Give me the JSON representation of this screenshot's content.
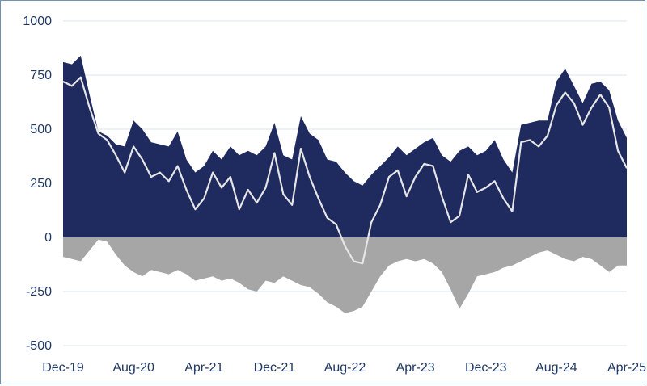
{
  "chart_data": {
    "type": "area",
    "title": "",
    "xlabel": "",
    "ylabel": "",
    "ylim": [
      -500,
      1000
    ],
    "yticks": [
      1000,
      750,
      500,
      250,
      0,
      -250,
      -500
    ],
    "xticks": [
      "Dec-19",
      "Aug-20",
      "Apr-21",
      "Dec-21",
      "Aug-22",
      "Apr-23",
      "Dec-23",
      "Aug-24",
      "Apr-25"
    ],
    "grid": true,
    "legend": "none",
    "x_range": [
      "2019-12",
      "2025-04"
    ],
    "series": [
      {
        "style": "area",
        "color": "#1f2b5e",
        "points": [
          [
            "2019-12",
            810
          ],
          [
            "2020-01",
            800
          ],
          [
            "2020-02",
            840
          ],
          [
            "2020-03",
            660
          ],
          [
            "2020-04",
            490
          ],
          [
            "2020-05",
            470
          ],
          [
            "2020-06",
            430
          ],
          [
            "2020-07",
            420
          ],
          [
            "2020-08",
            540
          ],
          [
            "2020-09",
            500
          ],
          [
            "2020-10",
            440
          ],
          [
            "2020-11",
            430
          ],
          [
            "2020-12",
            420
          ],
          [
            "2021-01",
            490
          ],
          [
            "2021-02",
            360
          ],
          [
            "2021-03",
            300
          ],
          [
            "2021-04",
            330
          ],
          [
            "2021-05",
            400
          ],
          [
            "2021-06",
            360
          ],
          [
            "2021-07",
            420
          ],
          [
            "2021-08",
            380
          ],
          [
            "2021-09",
            400
          ],
          [
            "2021-10",
            380
          ],
          [
            "2021-11",
            420
          ],
          [
            "2021-12",
            530
          ],
          [
            "2022-01",
            380
          ],
          [
            "2022-02",
            360
          ],
          [
            "2022-03",
            560
          ],
          [
            "2022-04",
            480
          ],
          [
            "2022-05",
            450
          ],
          [
            "2022-06",
            360
          ],
          [
            "2022-07",
            350
          ],
          [
            "2022-08",
            300
          ],
          [
            "2022-09",
            260
          ],
          [
            "2022-10",
            240
          ],
          [
            "2022-11",
            290
          ],
          [
            "2022-12",
            330
          ],
          [
            "2023-01",
            370
          ],
          [
            "2023-02",
            420
          ],
          [
            "2023-03",
            380
          ],
          [
            "2023-04",
            410
          ],
          [
            "2023-05",
            440
          ],
          [
            "2023-06",
            460
          ],
          [
            "2023-07",
            380
          ],
          [
            "2023-08",
            350
          ],
          [
            "2023-09",
            400
          ],
          [
            "2023-10",
            420
          ],
          [
            "2023-11",
            380
          ],
          [
            "2023-12",
            400
          ],
          [
            "2024-01",
            450
          ],
          [
            "2024-02",
            360
          ],
          [
            "2024-03",
            300
          ],
          [
            "2024-04",
            520
          ],
          [
            "2024-05",
            530
          ],
          [
            "2024-06",
            540
          ],
          [
            "2024-07",
            540
          ],
          [
            "2024-08",
            720
          ],
          [
            "2024-09",
            780
          ],
          [
            "2024-10",
            700
          ],
          [
            "2024-11",
            620
          ],
          [
            "2024-12",
            710
          ],
          [
            "2025-01",
            720
          ],
          [
            "2025-02",
            680
          ],
          [
            "2025-03",
            540
          ],
          [
            "2025-04",
            460
          ]
        ]
      },
      {
        "style": "area",
        "color": "#a6a6a6",
        "points": [
          [
            "2019-12",
            -90
          ],
          [
            "2020-01",
            -100
          ],
          [
            "2020-02",
            -110
          ],
          [
            "2020-03",
            -60
          ],
          [
            "2020-04",
            -10
          ],
          [
            "2020-05",
            -20
          ],
          [
            "2020-06",
            -80
          ],
          [
            "2020-07",
            -130
          ],
          [
            "2020-08",
            -160
          ],
          [
            "2020-09",
            -180
          ],
          [
            "2020-10",
            -150
          ],
          [
            "2020-11",
            -160
          ],
          [
            "2020-12",
            -170
          ],
          [
            "2021-01",
            -150
          ],
          [
            "2021-02",
            -170
          ],
          [
            "2021-03",
            -200
          ],
          [
            "2021-04",
            -190
          ],
          [
            "2021-05",
            -180
          ],
          [
            "2021-06",
            -200
          ],
          [
            "2021-07",
            -190
          ],
          [
            "2021-08",
            -210
          ],
          [
            "2021-09",
            -240
          ],
          [
            "2021-10",
            -250
          ],
          [
            "2021-11",
            -200
          ],
          [
            "2021-12",
            -210
          ],
          [
            "2022-01",
            -180
          ],
          [
            "2022-02",
            -200
          ],
          [
            "2022-03",
            -220
          ],
          [
            "2022-04",
            -230
          ],
          [
            "2022-05",
            -260
          ],
          [
            "2022-06",
            -300
          ],
          [
            "2022-07",
            -320
          ],
          [
            "2022-08",
            -350
          ],
          [
            "2022-09",
            -340
          ],
          [
            "2022-10",
            -320
          ],
          [
            "2022-11",
            -250
          ],
          [
            "2022-12",
            -180
          ],
          [
            "2023-01",
            -130
          ],
          [
            "2023-02",
            -110
          ],
          [
            "2023-03",
            -100
          ],
          [
            "2023-04",
            -110
          ],
          [
            "2023-05",
            -100
          ],
          [
            "2023-06",
            -120
          ],
          [
            "2023-07",
            -160
          ],
          [
            "2023-08",
            -240
          ],
          [
            "2023-09",
            -330
          ],
          [
            "2023-10",
            -260
          ],
          [
            "2023-11",
            -180
          ],
          [
            "2023-12",
            -170
          ],
          [
            "2024-01",
            -160
          ],
          [
            "2024-02",
            -140
          ],
          [
            "2024-03",
            -130
          ],
          [
            "2024-04",
            -110
          ],
          [
            "2024-05",
            -90
          ],
          [
            "2024-06",
            -70
          ],
          [
            "2024-07",
            -60
          ],
          [
            "2024-08",
            -80
          ],
          [
            "2024-09",
            -100
          ],
          [
            "2024-10",
            -110
          ],
          [
            "2024-11",
            -90
          ],
          [
            "2024-12",
            -100
          ],
          [
            "2025-01",
            -130
          ],
          [
            "2025-02",
            -160
          ],
          [
            "2025-03",
            -130
          ],
          [
            "2025-04",
            -130
          ]
        ]
      },
      {
        "style": "line",
        "color": "#e6e6e6",
        "points": [
          [
            "2019-12",
            720
          ],
          [
            "2020-01",
            700
          ],
          [
            "2020-02",
            740
          ],
          [
            "2020-03",
            600
          ],
          [
            "2020-04",
            480
          ],
          [
            "2020-05",
            450
          ],
          [
            "2020-06",
            380
          ],
          [
            "2020-07",
            300
          ],
          [
            "2020-08",
            420
          ],
          [
            "2020-09",
            360
          ],
          [
            "2020-10",
            280
          ],
          [
            "2020-11",
            300
          ],
          [
            "2020-12",
            260
          ],
          [
            "2021-01",
            330
          ],
          [
            "2021-02",
            220
          ],
          [
            "2021-03",
            130
          ],
          [
            "2021-04",
            180
          ],
          [
            "2021-05",
            300
          ],
          [
            "2021-06",
            230
          ],
          [
            "2021-07",
            280
          ],
          [
            "2021-08",
            130
          ],
          [
            "2021-09",
            220
          ],
          [
            "2021-10",
            160
          ],
          [
            "2021-11",
            230
          ],
          [
            "2021-12",
            390
          ],
          [
            "2022-01",
            200
          ],
          [
            "2022-02",
            150
          ],
          [
            "2022-03",
            410
          ],
          [
            "2022-04",
            280
          ],
          [
            "2022-05",
            180
          ],
          [
            "2022-06",
            90
          ],
          [
            "2022-07",
            60
          ],
          [
            "2022-08",
            -40
          ],
          [
            "2022-09",
            -110
          ],
          [
            "2022-10",
            -120
          ],
          [
            "2022-11",
            70
          ],
          [
            "2022-12",
            150
          ],
          [
            "2023-01",
            280
          ],
          [
            "2023-02",
            310
          ],
          [
            "2023-03",
            190
          ],
          [
            "2023-04",
            280
          ],
          [
            "2023-05",
            340
          ],
          [
            "2023-06",
            330
          ],
          [
            "2023-07",
            190
          ],
          [
            "2023-08",
            70
          ],
          [
            "2023-09",
            100
          ],
          [
            "2023-10",
            290
          ],
          [
            "2023-11",
            210
          ],
          [
            "2023-12",
            230
          ],
          [
            "2024-01",
            260
          ],
          [
            "2024-02",
            180
          ],
          [
            "2024-03",
            120
          ],
          [
            "2024-04",
            440
          ],
          [
            "2024-05",
            450
          ],
          [
            "2024-06",
            420
          ],
          [
            "2024-07",
            470
          ],
          [
            "2024-08",
            610
          ],
          [
            "2024-09",
            670
          ],
          [
            "2024-10",
            620
          ],
          [
            "2024-11",
            520
          ],
          [
            "2024-12",
            600
          ],
          [
            "2025-01",
            660
          ],
          [
            "2025-02",
            600
          ],
          [
            "2025-03",
            400
          ],
          [
            "2025-04",
            320
          ]
        ]
      }
    ]
  }
}
